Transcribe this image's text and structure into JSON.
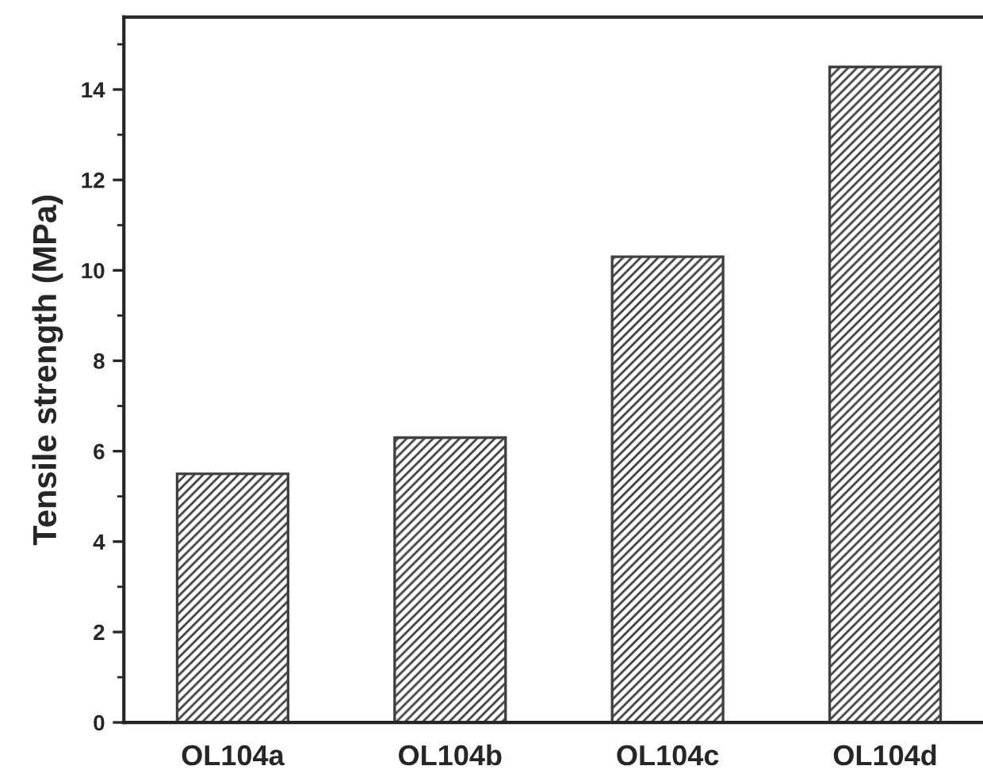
{
  "chart_data": {
    "type": "bar",
    "ylabel": "Tensile strength (MPa)",
    "categories": [
      "OL104a",
      "OL104b",
      "OL104c",
      "OL104d"
    ],
    "values": [
      5.5,
      6.3,
      10.3,
      14.5
    ],
    "color": "#404040",
    "ylim": [
      0,
      15.6
    ],
    "yticks": [
      0,
      {
        "value": 1,
        "label": null
      },
      2,
      {
        "value": 3,
        "label": null
      },
      4,
      {
        "value": 5,
        "label": null
      },
      6,
      {
        "value": 7,
        "label": null
      },
      8,
      {
        "value": 9,
        "label": null
      },
      10,
      {
        "value": 11,
        "label": null
      },
      12,
      {
        "value": 13,
        "label": null
      },
      14,
      {
        "value": 15,
        "label": null
      }
    ],
    "grid": false,
    "legend": false
  }
}
